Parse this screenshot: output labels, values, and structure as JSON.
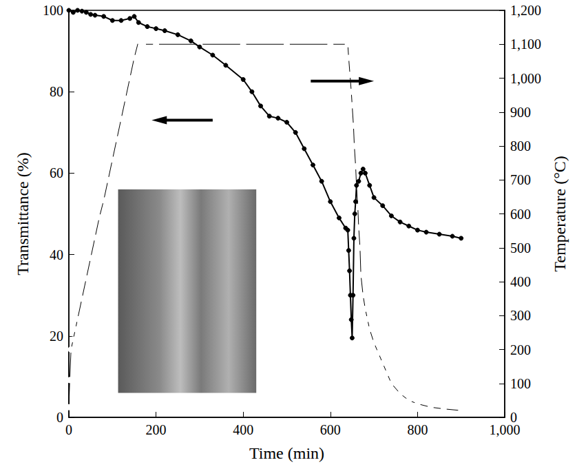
{
  "chart_data": {
    "type": "line",
    "xlabel": "Time (min)",
    "ylabel": "Transmittance (%)",
    "y2label": "Temperature (°C)",
    "xlim": [
      0,
      1000
    ],
    "xticks": [
      0,
      200,
      400,
      600,
      800,
      1000
    ],
    "ylim": [
      0,
      100
    ],
    "yticks": [
      0,
      20,
      40,
      60,
      80,
      100
    ],
    "y2lim": [
      0,
      1200
    ],
    "y2ticks": [
      0,
      100,
      200,
      300,
      400,
      500,
      600,
      700,
      800,
      900,
      1000,
      1100,
      1200
    ],
    "grid": false,
    "series": [
      {
        "color": "#000000",
        "marker": "circle",
        "axis": "y",
        "x": [
          0,
          10,
          20,
          30,
          40,
          50,
          60,
          80,
          100,
          120,
          140,
          150,
          160,
          180,
          200,
          220,
          250,
          280,
          300,
          330,
          360,
          400,
          420,
          440,
          460,
          480,
          500,
          520,
          540,
          560,
          580,
          600,
          620,
          635,
          640,
          642,
          644,
          646,
          648,
          650,
          652,
          654,
          656,
          658,
          660,
          665,
          670,
          675,
          680,
          690,
          700,
          720,
          740,
          760,
          780,
          800,
          820,
          850,
          880,
          900
        ],
        "values": [
          100,
          99.5,
          100,
          99.8,
          99.5,
          99,
          98.8,
          98.5,
          97.5,
          97.5,
          98,
          98.5,
          97,
          96,
          95.5,
          95,
          94,
          92.5,
          91,
          89,
          86.5,
          83,
          80,
          76.5,
          74,
          73.5,
          72.5,
          70,
          66,
          62,
          58,
          53,
          49,
          46.5,
          46,
          41,
          36,
          30,
          24,
          19.5,
          30,
          44,
          50,
          53,
          57,
          58,
          60,
          61,
          60,
          57,
          54,
          52,
          49.5,
          48,
          47,
          46,
          45.5,
          45,
          44.5,
          44
        ]
      },
      {
        "color": "#000000",
        "marker": "open_circle",
        "axis": "y2",
        "x": [
          0,
          2,
          5,
          10,
          15,
          20,
          30,
          40,
          50,
          60,
          70,
          80,
          90,
          100,
          110,
          120,
          130,
          140,
          150,
          160,
          170,
          200,
          300,
          400,
          500,
          600,
          640,
          642,
          645,
          648,
          650,
          653,
          655,
          658,
          660,
          663,
          665,
          668,
          670,
          675,
          680,
          685,
          690,
          700,
          710,
          720,
          730,
          740,
          760,
          780,
          800,
          830,
          860,
          900
        ],
        "values": [
          30,
          110,
          200,
          230,
          260,
          290,
          350,
          410,
          470,
          530,
          590,
          640,
          700,
          760,
          820,
          880,
          940,
          1000,
          1060,
          1110,
          1100,
          1100,
          1100,
          1100,
          1100,
          1100,
          1100,
          1060,
          1010,
          960,
          920,
          860,
          800,
          740,
          680,
          620,
          560,
          500,
          420,
          360,
          320,
          290,
          260,
          220,
          190,
          160,
          130,
          100,
          70,
          50,
          40,
          30,
          25,
          20
        ]
      }
    ]
  }
}
